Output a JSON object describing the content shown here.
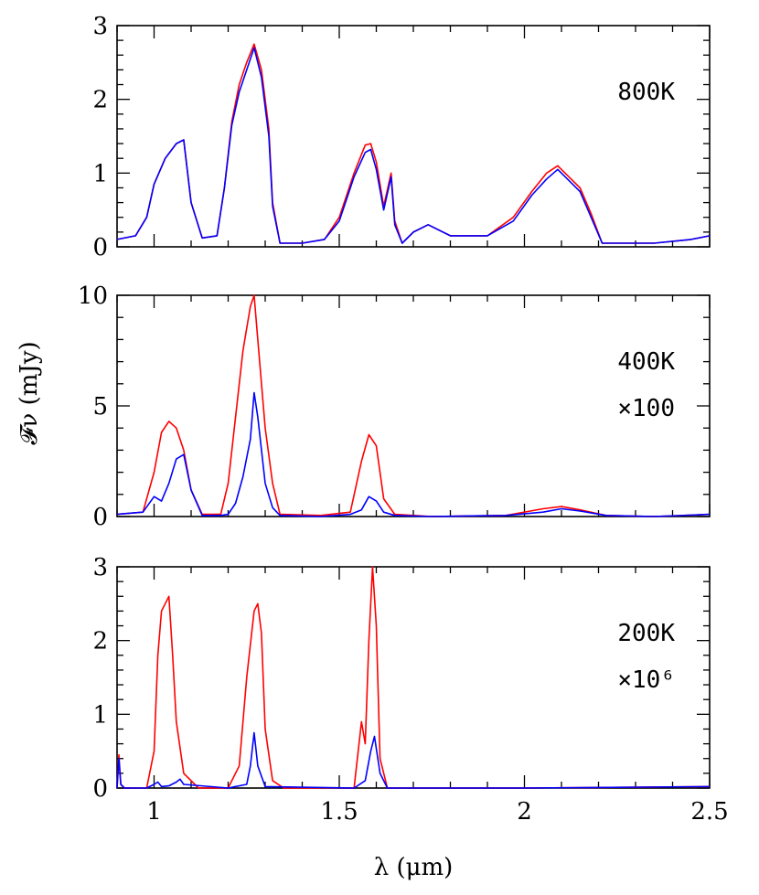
{
  "chart_data": {
    "type": "line",
    "shared_x": {
      "label": "λ (μm)",
      "range": [
        0.9,
        2.5
      ],
      "ticks": [
        1,
        1.5,
        2,
        2.5
      ],
      "tick_labels": [
        "1",
        "1.5",
        "2",
        "2.5"
      ]
    },
    "shared_ylabel": "𝓕ν (mJy)",
    "colors": {
      "red": "#ff0000",
      "blue": "#0000ff"
    },
    "panels": [
      {
        "label": "800K",
        "scale_label": "",
        "ylim": [
          0,
          3
        ],
        "yticks": [
          0,
          1,
          2,
          3
        ],
        "ytick_labels": [
          "0",
          "1",
          "2",
          "3"
        ],
        "series": [
          {
            "color": "#ff0000",
            "x": [
              0.9,
              0.95,
              0.98,
              1.0,
              1.03,
              1.06,
              1.08,
              1.1,
              1.13,
              1.17,
              1.19,
              1.21,
              1.23,
              1.25,
              1.27,
              1.29,
              1.31,
              1.32,
              1.34,
              1.4,
              1.46,
              1.5,
              1.54,
              1.57,
              1.585,
              1.6,
              1.62,
              1.64,
              1.65,
              1.67,
              1.7,
              1.74,
              1.8,
              1.9,
              1.97,
              2.02,
              2.06,
              2.09,
              2.12,
              2.15,
              2.18,
              2.21,
              2.25,
              2.35,
              2.45,
              2.5
            ],
            "y": [
              0.1,
              0.15,
              0.4,
              0.85,
              1.2,
              1.4,
              1.45,
              0.6,
              0.12,
              0.15,
              0.8,
              1.7,
              2.2,
              2.5,
              2.75,
              2.4,
              1.6,
              0.6,
              0.05,
              0.05,
              0.1,
              0.4,
              1.0,
              1.38,
              1.4,
              1.15,
              0.55,
              1.0,
              0.35,
              0.05,
              0.2,
              0.3,
              0.15,
              0.15,
              0.4,
              0.75,
              1.0,
              1.1,
              0.95,
              0.8,
              0.45,
              0.05,
              0.05,
              0.05,
              0.1,
              0.15
            ]
          },
          {
            "color": "#0000ff",
            "x": [
              0.9,
              0.95,
              0.98,
              1.0,
              1.03,
              1.06,
              1.08,
              1.1,
              1.13,
              1.17,
              1.19,
              1.21,
              1.23,
              1.25,
              1.27,
              1.29,
              1.31,
              1.32,
              1.34,
              1.4,
              1.46,
              1.5,
              1.54,
              1.57,
              1.585,
              1.6,
              1.62,
              1.64,
              1.65,
              1.67,
              1.7,
              1.74,
              1.8,
              1.9,
              1.97,
              2.02,
              2.06,
              2.09,
              2.12,
              2.15,
              2.18,
              2.21,
              2.25,
              2.35,
              2.45,
              2.5
            ],
            "y": [
              0.1,
              0.15,
              0.4,
              0.85,
              1.2,
              1.4,
              1.45,
              0.6,
              0.12,
              0.15,
              0.8,
              1.65,
              2.1,
              2.4,
              2.7,
              2.3,
              1.5,
              0.55,
              0.05,
              0.05,
              0.1,
              0.35,
              0.95,
              1.28,
              1.32,
              1.05,
              0.5,
              0.95,
              0.3,
              0.05,
              0.2,
              0.3,
              0.15,
              0.15,
              0.35,
              0.7,
              0.92,
              1.05,
              0.9,
              0.75,
              0.4,
              0.05,
              0.05,
              0.05,
              0.1,
              0.15
            ]
          }
        ]
      },
      {
        "label": "400K",
        "scale_label": "×100",
        "ylim": [
          0,
          10
        ],
        "yticks": [
          0,
          5,
          10
        ],
        "ytick_labels": [
          "0",
          "5",
          "10"
        ],
        "series": [
          {
            "color": "#ff0000",
            "x": [
              0.9,
              0.97,
              1.0,
              1.02,
              1.04,
              1.06,
              1.08,
              1.1,
              1.13,
              1.18,
              1.2,
              1.22,
              1.24,
              1.26,
              1.27,
              1.28,
              1.3,
              1.32,
              1.34,
              1.45,
              1.53,
              1.56,
              1.58,
              1.6,
              1.62,
              1.65,
              1.75,
              1.95,
              2.05,
              2.1,
              2.15,
              2.22,
              2.35,
              2.5
            ],
            "y": [
              0.1,
              0.2,
              2.0,
              3.8,
              4.3,
              4.0,
              3.0,
              1.2,
              0.1,
              0.1,
              1.5,
              4.5,
              7.5,
              9.5,
              10.0,
              8.0,
              4.0,
              1.5,
              0.1,
              0.05,
              0.2,
              2.5,
              3.7,
              3.2,
              0.8,
              0.1,
              0.0,
              0.05,
              0.35,
              0.45,
              0.3,
              0.05,
              0.0,
              0.1
            ]
          },
          {
            "color": "#0000ff",
            "x": [
              0.9,
              0.97,
              1.0,
              1.02,
              1.04,
              1.06,
              1.08,
              1.1,
              1.13,
              1.18,
              1.2,
              1.22,
              1.24,
              1.26,
              1.27,
              1.28,
              1.3,
              1.32,
              1.34,
              1.45,
              1.53,
              1.56,
              1.58,
              1.6,
              1.62,
              1.65,
              1.75,
              1.95,
              2.05,
              2.1,
              2.15,
              2.22,
              2.35,
              2.5
            ],
            "y": [
              0.1,
              0.2,
              0.9,
              0.7,
              1.5,
              2.6,
              2.8,
              1.2,
              0.05,
              0.05,
              0.1,
              0.6,
              1.8,
              3.5,
              5.6,
              4.5,
              1.5,
              0.4,
              0.05,
              0.0,
              0.1,
              0.3,
              0.9,
              0.7,
              0.2,
              0.05,
              0.0,
              0.05,
              0.2,
              0.35,
              0.25,
              0.05,
              0.0,
              0.1
            ]
          }
        ]
      },
      {
        "label": "200K",
        "scale_label": "×10⁶",
        "ylim": [
          0,
          3
        ],
        "yticks": [
          0,
          1,
          2,
          3
        ],
        "ytick_labels": [
          "0",
          "1",
          "2",
          "3"
        ],
        "series": [
          {
            "color": "#ff0000",
            "x": [
              0.9,
              0.905,
              0.91,
              0.92,
              0.98,
              1.0,
              1.01,
              1.02,
              1.03,
              1.04,
              1.05,
              1.06,
              1.08,
              1.12,
              1.2,
              1.23,
              1.25,
              1.27,
              1.28,
              1.29,
              1.3,
              1.32,
              1.35,
              1.54,
              1.56,
              1.57,
              1.58,
              1.59,
              1.6,
              1.61,
              1.63,
              2.0,
              2.5
            ],
            "y": [
              0.0,
              0.45,
              0.05,
              0.0,
              0.0,
              0.5,
              1.8,
              2.4,
              2.5,
              2.6,
              1.8,
              0.9,
              0.2,
              0.0,
              0.0,
              0.3,
              1.5,
              2.4,
              2.5,
              2.1,
              0.8,
              0.1,
              0.0,
              0.0,
              0.9,
              0.6,
              2.0,
              3.0,
              2.2,
              0.4,
              0.0,
              0.0,
              0.02
            ]
          },
          {
            "color": "#0000ff",
            "x": [
              0.9,
              0.905,
              0.91,
              0.92,
              0.98,
              1.0,
              1.01,
              1.02,
              1.04,
              1.06,
              1.07,
              1.08,
              1.2,
              1.25,
              1.26,
              1.27,
              1.28,
              1.3,
              1.54,
              1.57,
              1.585,
              1.595,
              1.61,
              1.63,
              2.0,
              2.5
            ],
            "y": [
              0.0,
              0.4,
              0.05,
              0.0,
              0.0,
              0.05,
              0.08,
              0.02,
              0.03,
              0.08,
              0.12,
              0.05,
              0.0,
              0.05,
              0.3,
              0.75,
              0.3,
              0.02,
              0.0,
              0.1,
              0.5,
              0.7,
              0.2,
              0.0,
              0.0,
              0.02
            ]
          }
        ]
      }
    ]
  }
}
